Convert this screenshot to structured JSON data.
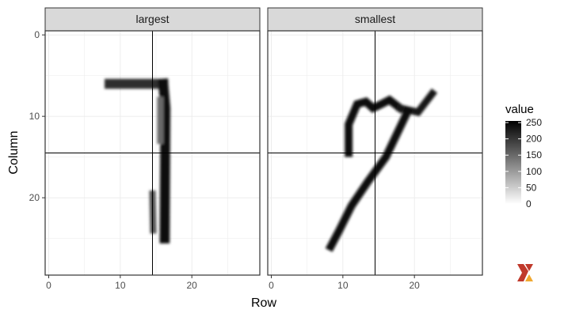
{
  "chart_data": {
    "type": "heatmap",
    "facets": [
      {
        "label": "largest",
        "strokes": [
          {
            "points": [
              [
                8.5,
                6
              ],
              [
                16,
                6
              ]
            ],
            "width": 1.4,
            "value": 210
          },
          {
            "points": [
              [
                16,
                6
              ],
              [
                16.3,
                9
              ],
              [
                16.2,
                25
              ]
            ],
            "width": 1.4,
            "value": 245
          },
          {
            "points": [
              [
                15.6,
                8
              ],
              [
                15.6,
                13
              ]
            ],
            "width": 0.9,
            "value": 150
          },
          {
            "points": [
              [
                14.5,
                19.5
              ],
              [
                14.6,
                24
              ]
            ],
            "width": 0.9,
            "value": 170
          }
        ]
      },
      {
        "label": "smallest",
        "strokes": [
          {
            "points": [
              [
                10.8,
                14.5
              ],
              [
                10.8,
                11
              ],
              [
                12,
                8.5
              ],
              [
                13.2,
                8.2
              ],
              [
                14.2,
                9
              ],
              [
                15.4,
                8.5
              ],
              [
                16.5,
                8
              ],
              [
                18,
                9
              ]
            ],
            "width": 1.1,
            "value": 245
          },
          {
            "points": [
              [
                18,
                9
              ],
              [
                20.5,
                9.5
              ],
              [
                22.5,
                7.2
              ]
            ],
            "width": 1.0,
            "value": 230
          },
          {
            "points": [
              [
                19,
                9.5
              ],
              [
                16,
                15
              ],
              [
                13.5,
                18
              ],
              [
                11.2,
                21
              ],
              [
                9.5,
                24
              ],
              [
                8.3,
                26
              ]
            ],
            "width": 1.1,
            "value": 245
          }
        ]
      }
    ],
    "vline_x": 14.5,
    "hline_y": 14.5,
    "xlabel": "Row",
    "ylabel": "Column",
    "x_ticks": [
      0,
      10,
      20
    ],
    "y_ticks": [
      0,
      10,
      20
    ],
    "xlim": [
      -0.5,
      29.5
    ],
    "ylim": [
      -0.5,
      29.5
    ],
    "y_reversed": true,
    "legend": {
      "title": "value",
      "position": "right",
      "ticks": [
        0,
        50,
        100,
        150,
        200,
        250
      ],
      "range": [
        0,
        255
      ],
      "low_color": "#ffffff",
      "high_color": "#000000"
    },
    "grid": true
  },
  "logo": {
    "name": "x-logo",
    "colors": [
      "#c0392b",
      "#f0a830"
    ]
  }
}
